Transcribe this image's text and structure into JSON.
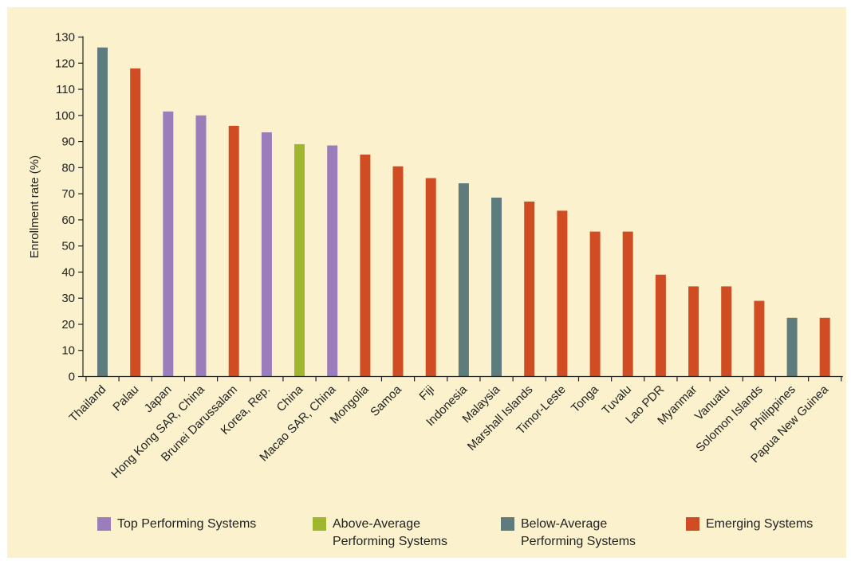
{
  "chart_data": {
    "type": "bar",
    "ylabel": "Enrollment rate (%)",
    "ylim": [
      0,
      130
    ],
    "yticks": [
      0,
      10,
      20,
      30,
      40,
      50,
      60,
      70,
      80,
      90,
      100,
      110,
      120,
      130
    ],
    "grid": false,
    "legend_position": "bottom",
    "categories": [
      "Thailand",
      "Palau",
      "Japan",
      "Hong Kong SAR, China",
      "Brunei Darussalam",
      "Korea, Rep.",
      "China",
      "Macao SAR, China",
      "Mongolia",
      "Samoa",
      "Fiji",
      "Indonesia",
      "Malaysia",
      "Marshall Islands",
      "Timor-Leste",
      "Tonga",
      "Tuvalu",
      "Lao PDR",
      "Myanmar",
      "Vanuatu",
      "Solomon Islands",
      "Philippines",
      "Papua New Guinea"
    ],
    "values": [
      126,
      118,
      101.5,
      100,
      96,
      93.5,
      89,
      88.5,
      85,
      80.5,
      76,
      74,
      68.5,
      67,
      63.5,
      55.5,
      55.5,
      39,
      34.5,
      34.5,
      29,
      22.5,
      22.5
    ],
    "groups": [
      "below",
      "emerging",
      "top",
      "top",
      "emerging",
      "top",
      "above",
      "top",
      "emerging",
      "emerging",
      "emerging",
      "below",
      "below",
      "emerging",
      "emerging",
      "emerging",
      "emerging",
      "emerging",
      "emerging",
      "emerging",
      "emerging",
      "below",
      "emerging"
    ],
    "legend": [
      {
        "key": "top",
        "label": "Top Performing Systems",
        "color": "#9b7dbb"
      },
      {
        "key": "above",
        "label": "Above-Average\nPerforming Systems",
        "color": "#9fb72e"
      },
      {
        "key": "below",
        "label": "Below-Average\nPerforming Systems",
        "color": "#5e7b7d"
      },
      {
        "key": "emerging",
        "label": "Emerging Systems",
        "color": "#d04d23"
      }
    ],
    "background_color": "#fbf2cd",
    "axis_color": "#222222"
  }
}
